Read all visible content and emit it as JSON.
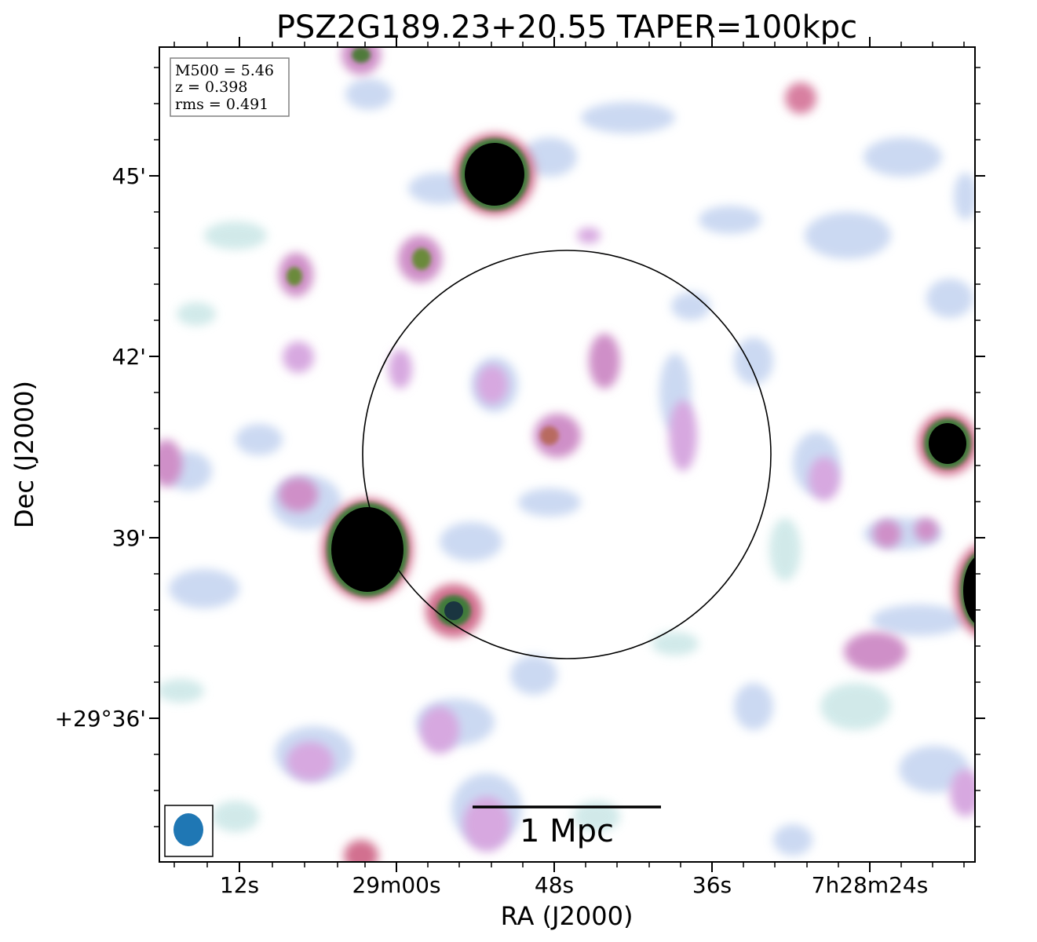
{
  "figure": {
    "title": "PSZ2G189.23+20.55 TAPER=100kpc",
    "xlabel": "RA (J2000)",
    "ylabel": "Dec (J2000)"
  },
  "axes": {
    "x_ticks": [
      "12s",
      "29m00s",
      "48s",
      "36s",
      "7h28m24s"
    ],
    "y_ticks": [
      "45'",
      "42'",
      "39'",
      "+29°36'"
    ]
  },
  "info_box": {
    "m500": "M500 = 5.46",
    "z": "z = 0.398",
    "rms": "rms = 0.491"
  },
  "scalebar": {
    "label": "1 Mpc"
  },
  "colors": {
    "low_emission": "#c3d3f0",
    "mid_emission": "#cf8fc8",
    "high_emission": "#d26f8f",
    "bright_emission": "#000000",
    "beam": "#1f77b4"
  }
}
